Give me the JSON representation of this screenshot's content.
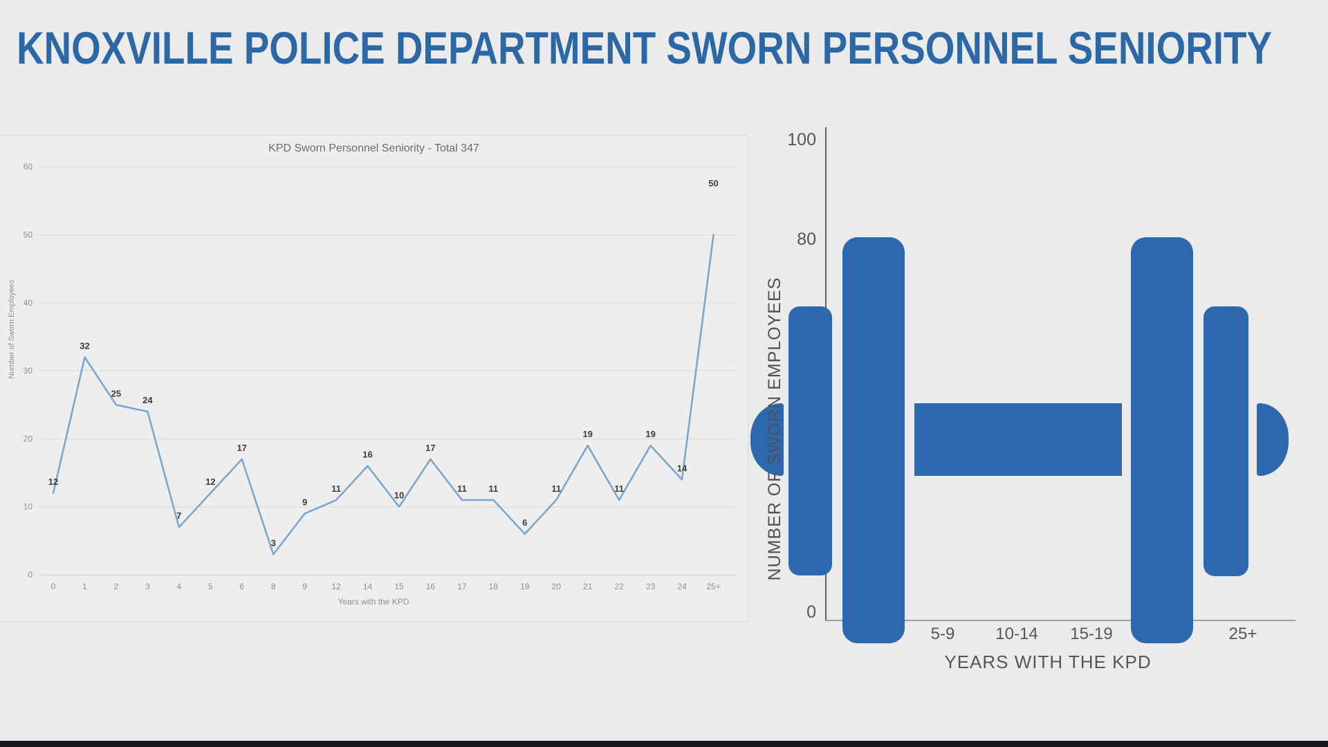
{
  "page": {
    "title": "KNOXVILLE POLICE DEPARTMENT SWORN PERSONNEL SENIORITY",
    "background": "#ebebeb",
    "title_color": "#2c68a6",
    "bottom_bar_color": "#16181d"
  },
  "chart_data": [
    {
      "type": "line",
      "title": "KPD Sworn Personnel Seniority - Total 347",
      "categories": [
        "0",
        "1",
        "2",
        "3",
        "4",
        "5",
        "6",
        "8",
        "9",
        "12",
        "14",
        "15",
        "16",
        "17",
        "18",
        "19",
        "20",
        "21",
        "22",
        "23",
        "24",
        "25+"
      ],
      "values": [
        12,
        32,
        25,
        24,
        7,
        12,
        17,
        3,
        9,
        11,
        16,
        10,
        17,
        11,
        11,
        6,
        11,
        19,
        11,
        19,
        14,
        50
      ],
      "total": 347,
      "xlabel": "Years with the KPD",
      "ylabel": "Number of Sworn Employees",
      "ylim": [
        0,
        60
      ],
      "yticks": [
        0,
        10,
        20,
        30,
        40,
        50,
        60
      ],
      "grid": true,
      "data_labels": true,
      "line_color": "#7ba6cf",
      "label_color": "#3c3c3c",
      "tick_color": "#8f8f8f"
    },
    {
      "type": "bar",
      "style": "dumbbell-pictogram",
      "description": "Stylized dumbbell-shaped bar graphic depicting the U-shaped seniority distribution",
      "ylabel": "NUMBER OF SWORN EMPLOYEES",
      "xlabel": "YEARS WITH THE KPD",
      "ylim": [
        0,
        100
      ],
      "yticks_visible": [
        "0",
        "80",
        "100"
      ],
      "xticks_visible": [
        "5-9",
        "10-14",
        "15-19",
        "25+"
      ],
      "figure_parts": [
        "left-end-cap",
        "small-plate",
        "large-plate",
        "handle",
        "large-plate",
        "small-plate",
        "right-end-cap"
      ],
      "plate_top_values": {
        "large_plate": 80,
        "small_plate": 65
      },
      "handle_value_span": [
        30,
        45
      ],
      "color": "#2d67ae"
    }
  ]
}
